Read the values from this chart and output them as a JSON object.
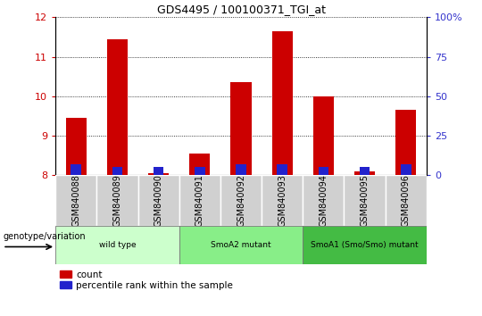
{
  "title": "GDS4495 / 100100371_TGI_at",
  "samples": [
    "GSM840088",
    "GSM840089",
    "GSM840090",
    "GSM840091",
    "GSM840092",
    "GSM840093",
    "GSM840094",
    "GSM840095",
    "GSM840096"
  ],
  "red_values": [
    9.45,
    11.45,
    8.05,
    8.55,
    10.35,
    11.65,
    10.0,
    8.1,
    9.65
  ],
  "blue_values": [
    8.28,
    8.22,
    8.22,
    8.22,
    8.28,
    8.28,
    8.22,
    8.22,
    8.28
  ],
  "ylim_left": [
    8.0,
    12.0
  ],
  "ylim_right": [
    0,
    100
  ],
  "yticks_left": [
    8,
    9,
    10,
    11,
    12
  ],
  "yticks_right": [
    0,
    25,
    50,
    75,
    100
  ],
  "left_tick_color": "#cc0000",
  "right_tick_color": "#3333cc",
  "bar_color_red": "#cc0000",
  "bar_color_blue": "#2222cc",
  "groups": [
    {
      "label": "wild type",
      "indices": [
        0,
        1,
        2
      ],
      "color": "#ccffcc"
    },
    {
      "label": "SmoA2 mutant",
      "indices": [
        3,
        4,
        5
      ],
      "color": "#88ee88"
    },
    {
      "label": "SmoA1 (Smo/Smo) mutant",
      "indices": [
        6,
        7,
        8
      ],
      "color": "#44bb44"
    }
  ],
  "legend_count": "count",
  "legend_percentile": "percentile rank within the sample",
  "genotype_label": "genotype/variation",
  "bar_width": 0.5,
  "blue_bar_width": 0.25
}
